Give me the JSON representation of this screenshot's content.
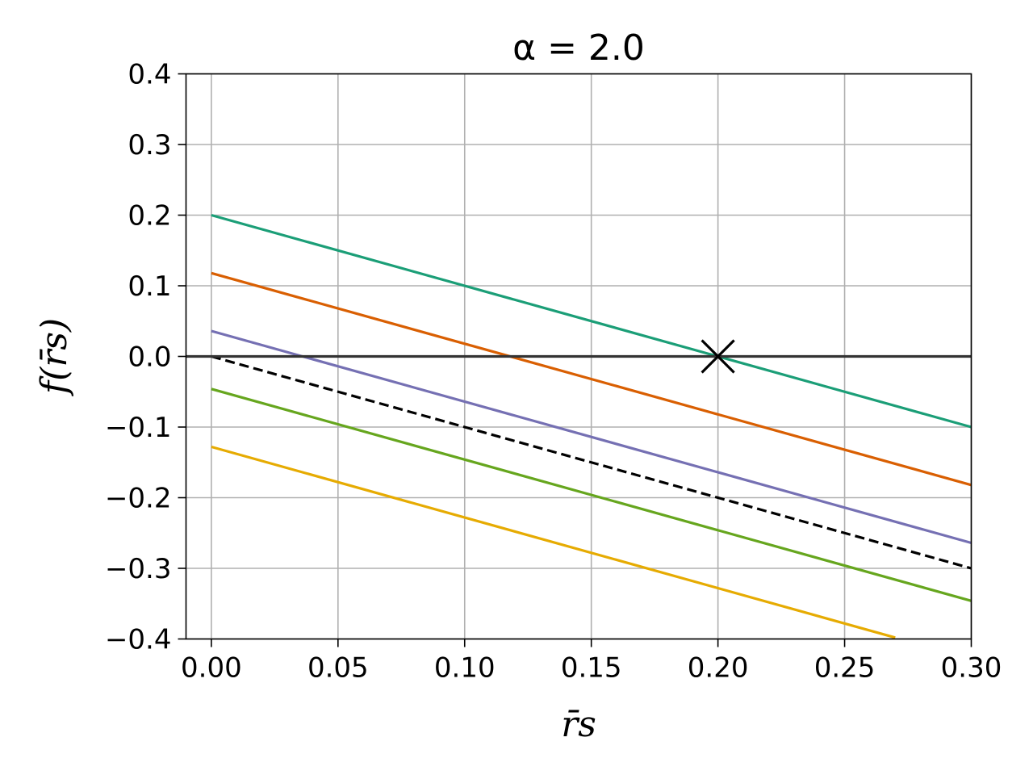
{
  "chart_data": {
    "type": "line",
    "title": "α = 2.0",
    "xlabel": "r̄s",
    "ylabel": "f(r̄s)",
    "xlim": [
      -0.01,
      0.3
    ],
    "ylim": [
      -0.4,
      0.4
    ],
    "xticks": [
      "0.00",
      "0.05",
      "0.10",
      "0.15",
      "0.20",
      "0.25",
      "0.30"
    ],
    "xtick_values": [
      0.0,
      0.05,
      0.1,
      0.15,
      0.2,
      0.25,
      0.3
    ],
    "yticks": [
      "0.4",
      "0.3",
      "0.2",
      "0.1",
      "0.0",
      "−0.1",
      "−0.2",
      "−0.3",
      "−0.4"
    ],
    "ytick_values": [
      0.4,
      0.3,
      0.2,
      0.1,
      0.0,
      -0.1,
      -0.2,
      -0.3,
      -0.4
    ],
    "grid": true,
    "legend": "none",
    "series": [
      {
        "color": "#1b9e77",
        "style": "solid",
        "x": [
          0.0,
          0.3
        ],
        "y": [
          0.2,
          -0.1
        ]
      },
      {
        "color": "#d95f02",
        "style": "solid",
        "x": [
          0.0,
          0.3
        ],
        "y": [
          0.118,
          -0.182
        ]
      },
      {
        "color": "#7570b3",
        "style": "solid",
        "x": [
          0.0,
          0.3
        ],
        "y": [
          0.036,
          -0.264
        ]
      },
      {
        "color": "#000000",
        "style": "dashed",
        "x": [
          0.0,
          0.3
        ],
        "y": [
          0.0,
          -0.3
        ]
      },
      {
        "color": "#66a61e",
        "style": "solid",
        "x": [
          0.0,
          0.3
        ],
        "y": [
          -0.046,
          -0.346
        ]
      },
      {
        "color": "#e6ab02",
        "style": "solid",
        "x": [
          0.0,
          0.27
        ],
        "y": [
          -0.128,
          -0.398
        ]
      }
    ],
    "hline": {
      "y": 0.0,
      "color": "#333333"
    },
    "marker": {
      "x": 0.2,
      "y": 0.0,
      "symbol": "x",
      "color": "#000000"
    }
  }
}
